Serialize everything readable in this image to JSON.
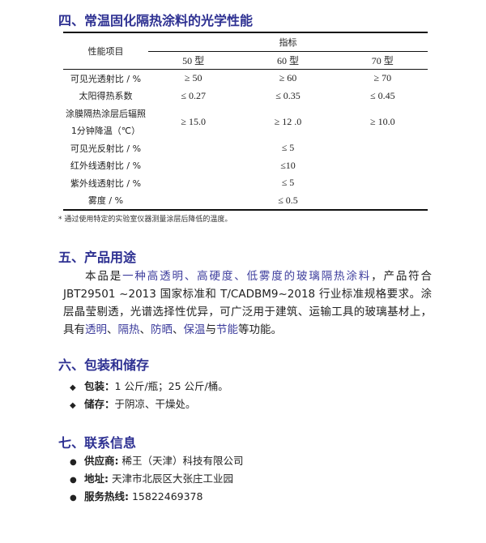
{
  "section4": {
    "title": "四、常温固化隔热涂料的光学性能",
    "table": {
      "col_item": "性能项目",
      "col_group": "指标",
      "models": [
        "50 型",
        "60 型",
        "70 型"
      ],
      "rows": [
        {
          "label": "可见光透射比 / %",
          "values": [
            "≥ 50",
            "≥ 60",
            "≥ 70"
          ]
        },
        {
          "label": "太阳得热系数",
          "values": [
            "≤ 0.27",
            "≤ 0.35",
            "≤ 0.45"
          ]
        },
        {
          "label_line1": "涂膜隔热涂层后辐照",
          "label_line2": "1分钟降温（℃）",
          "values": [
            "≥ 15.0",
            "≥ 12 .0",
            "≥ 10.0"
          ]
        },
        {
          "label": "可见光反射比 / %",
          "value": "≤ 5"
        },
        {
          "label": "红外线透射比 / %",
          "value": "≤10"
        },
        {
          "label": "紫外线透射比 / %",
          "value": "≤ 5"
        },
        {
          "label": "雾度 / %",
          "value": "≤ 0.5"
        }
      ]
    },
    "footnote": "* 通过使用特定的实验室仪器测量涂层后降低的温度。"
  },
  "section5": {
    "title": "五、产品用途",
    "p": [
      "本品是",
      "一种高透明、高硬度、低雾度的玻璃隔热涂料",
      "，产品符合 JBT29501 ~2013 国家标准和 T/CADBM9~2018 行业标准规格要求。涂层晶莹剔透，光谱选择性优异，可广泛用于建筑、运输工具的玻璃基材上，具有",
      "透明",
      "、",
      "隔热",
      "、",
      "防晒",
      "、",
      "保温",
      "与",
      "节能",
      "等功能。"
    ]
  },
  "section6": {
    "title": "六、包装和储存",
    "items": [
      {
        "label": "包装：",
        "text": "1 公斤/瓶；25 公斤/桶。"
      },
      {
        "label": "储存：",
        "text": "于阴凉、干燥处。"
      }
    ]
  },
  "section7": {
    "title": "七、联系信息",
    "items": [
      {
        "label": "供应商:",
        "text": " 稀王（天津）科技有限公司"
      },
      {
        "label": "地址:",
        "text": " 天津市北辰区大张庄工业园"
      },
      {
        "label": "服务热线:",
        "text": " 15822469378"
      }
    ]
  },
  "colors": {
    "heading": "#2e3192",
    "highlight": "#3c3c9c"
  }
}
